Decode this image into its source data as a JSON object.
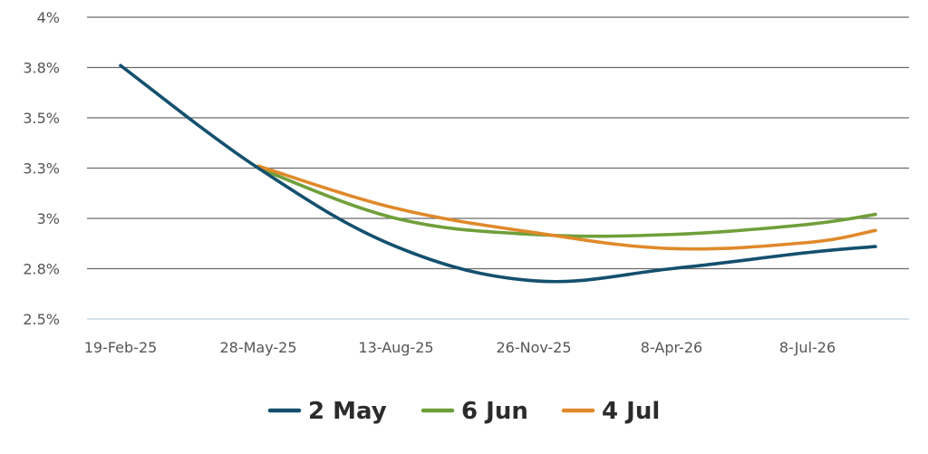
{
  "chart_data": {
    "type": "line",
    "title": "",
    "xlabel": "",
    "ylabel": "",
    "ylim": [
      2.5,
      4.0
    ],
    "y_ticks": [
      {
        "value": 2.5,
        "label": "2.5%"
      },
      {
        "value": 2.75,
        "label": "2.8%"
      },
      {
        "value": 3.0,
        "label": "3%"
      },
      {
        "value": 3.25,
        "label": "3.3%"
      },
      {
        "value": 3.5,
        "label": "3.5%"
      },
      {
        "value": 3.75,
        "label": "3.8%"
      },
      {
        "value": 4.0,
        "label": "4%"
      }
    ],
    "x_ticks": [
      "19-Feb-25",
      "28-May-25",
      "13-Aug-25",
      "26-Nov-25",
      "8-Apr-26",
      "8-Jul-26"
    ],
    "grid": true,
    "legend_position": "bottom",
    "series": [
      {
        "name": "2 May",
        "color": "#14506e",
        "x": [
          "19-Feb-25",
          "28-May-25",
          "13-Aug-25",
          "26-Nov-25",
          "8-Apr-26",
          "8-Jul-26",
          "Oct-26"
        ],
        "values": [
          3.76,
          3.25,
          2.86,
          2.69,
          2.75,
          2.83,
          2.86
        ]
      },
      {
        "name": "6 Jun",
        "color": "#6f9f3a",
        "x": [
          "28-May-25",
          "13-Aug-25",
          "26-Nov-25",
          "8-Apr-26",
          "8-Jul-26",
          "Oct-26"
        ],
        "values": [
          3.25,
          3.0,
          2.92,
          2.92,
          2.97,
          3.02
        ]
      },
      {
        "name": "4 Jul",
        "color": "#e0892a",
        "x": [
          "28-May-25",
          "13-Aug-25",
          "26-Nov-25",
          "8-Apr-26",
          "8-Jul-26",
          "Oct-26"
        ],
        "values": [
          3.26,
          3.05,
          2.93,
          2.85,
          2.88,
          2.94
        ]
      }
    ]
  }
}
